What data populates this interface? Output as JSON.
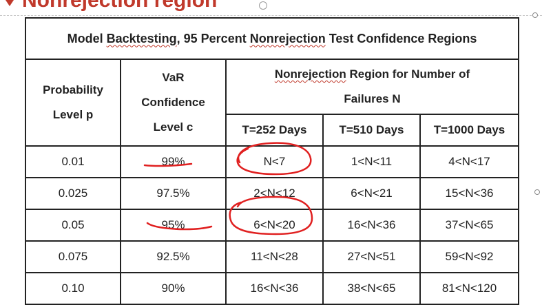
{
  "slide": {
    "heading": "Nonrejection region"
  },
  "table": {
    "title_parts": [
      "Model ",
      "Backtesting",
      ", 95 Percent ",
      "Nonrejection",
      " Test  Confidence Regions"
    ],
    "headers": {
      "probability": [
        "Probability",
        "Level p"
      ],
      "var": [
        "VaR",
        "Confidence",
        "Level c"
      ],
      "region_parts": [
        "Nonrejection",
        " Region for Number of"
      ],
      "region_line2": "Failures N",
      "t_columns": [
        "T=252 Days",
        "T=510 Days",
        "T=1000 Days"
      ]
    },
    "rows": [
      {
        "p": "0.01",
        "c": "99%",
        "t252": "N<7",
        "t510": "1<N<11",
        "t1000": "4<N<17"
      },
      {
        "p": "0.025",
        "c": "97.5%",
        "t252": "2<N<12",
        "t510": "6<N<21",
        "t1000": "15<N<36"
      },
      {
        "p": "0.05",
        "c": "95%",
        "t252": "6<N<20",
        "t510": "16<N<36",
        "t1000": "37<N<65"
      },
      {
        "p": "0.075",
        "c": "92.5%",
        "t252": "11<N<28",
        "t510": "27<N<51",
        "t1000": "59<N<92"
      },
      {
        "p": "0.10",
        "c": "90%",
        "t252": "16<N<36",
        "t510": "38<N<65",
        "t1000": "81<N<120"
      }
    ]
  },
  "colors": {
    "heading": "#c0392b",
    "annotation": "#e02020",
    "border": "#222222"
  }
}
